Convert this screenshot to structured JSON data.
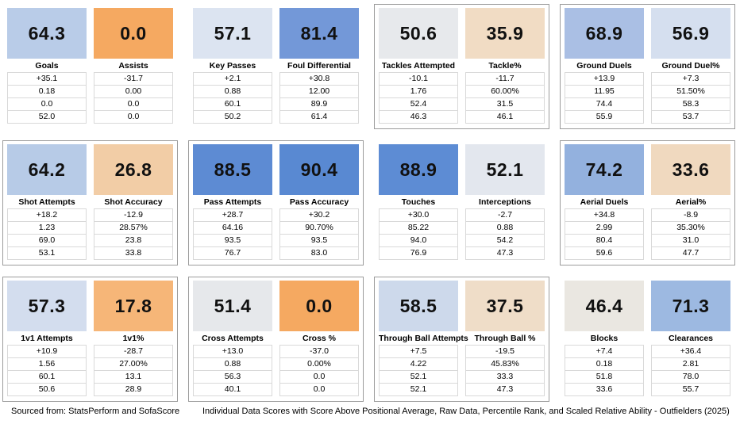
{
  "board": {
    "rows": [
      {
        "groups": [
          {
            "bordered": false,
            "cards": [
              {
                "score": "64.3",
                "score_color": "#b9cce8",
                "label": "Goals",
                "values": [
                  "+35.1",
                  "0.18",
                  "0.0",
                  "52.0"
                ]
              },
              {
                "score": "0.0",
                "score_color": "#f5a961",
                "label": "Assists",
                "values": [
                  "-31.7",
                  "0.00",
                  "0.0",
                  "0.0"
                ]
              }
            ]
          },
          {
            "bordered": false,
            "cards": [
              {
                "score": "57.1",
                "score_color": "#dce4f1",
                "label": "Key Passes",
                "values": [
                  "+2.1",
                  "0.88",
                  "60.1",
                  "50.2"
                ]
              },
              {
                "score": "81.4",
                "score_color": "#7398d8",
                "label": "Foul Differential",
                "values": [
                  "+30.8",
                  "12.00",
                  "89.9",
                  "61.4"
                ]
              }
            ]
          },
          {
            "bordered": true,
            "cards": [
              {
                "score": "50.6",
                "score_color": "#e7e9ec",
                "label": "Tackles Attempted",
                "values": [
                  "-10.1",
                  "1.76",
                  "52.4",
                  "46.3"
                ]
              },
              {
                "score": "35.9",
                "score_color": "#f1dcc4",
                "label": "Tackle%",
                "values": [
                  "-11.7",
                  "60.00%",
                  "31.5",
                  "46.1"
                ]
              }
            ]
          },
          {
            "bordered": true,
            "cards": [
              {
                "score": "68.9",
                "score_color": "#aabfe4",
                "label": "Ground Duels",
                "values": [
                  "+13.9",
                  "11.95",
                  "74.4",
                  "55.9"
                ]
              },
              {
                "score": "56.9",
                "score_color": "#d5dfef",
                "label": "Ground Duel%",
                "values": [
                  "+7.3",
                  "51.50%",
                  "58.3",
                  "53.7"
                ]
              }
            ]
          }
        ]
      },
      {
        "groups": [
          {
            "bordered": true,
            "cards": [
              {
                "score": "64.2",
                "score_color": "#b7cbe7",
                "label": "Shot Attempts",
                "values": [
                  "+18.2",
                  "1.23",
                  "69.0",
                  "53.1"
                ]
              },
              {
                "score": "26.8",
                "score_color": "#f2cda6",
                "label": "Shot Accuracy",
                "values": [
                  "-12.9",
                  "28.57%",
                  "23.8",
                  "33.8"
                ]
              }
            ]
          },
          {
            "bordered": true,
            "cards": [
              {
                "score": "88.5",
                "score_color": "#5d8bd3",
                "label": "Pass Attempts",
                "values": [
                  "+28.7",
                  "64.16",
                  "93.5",
                  "76.7"
                ]
              },
              {
                "score": "90.4",
                "score_color": "#5989d2",
                "label": "Pass Accuracy",
                "values": [
                  "+30.2",
                  "90.70%",
                  "93.5",
                  "83.0"
                ]
              }
            ]
          },
          {
            "bordered": false,
            "cards": [
              {
                "score": "88.9",
                "score_color": "#5d8cd4",
                "label": "Touches",
                "values": [
                  "+30.0",
                  "85.22",
                  "94.0",
                  "76.9"
                ]
              },
              {
                "score": "52.1",
                "score_color": "#e3e7ee",
                "label": "Interceptions",
                "values": [
                  "-2.7",
                  "0.88",
                  "54.2",
                  "47.3"
                ]
              }
            ]
          },
          {
            "bordered": true,
            "cards": [
              {
                "score": "74.2",
                "score_color": "#93b1de",
                "label": "Aerial Duels",
                "values": [
                  "+34.8",
                  "2.99",
                  "80.4",
                  "59.6"
                ]
              },
              {
                "score": "33.6",
                "score_color": "#f0d9bf",
                "label": "Aerial%",
                "values": [
                  "-8.9",
                  "35.30%",
                  "31.0",
                  "47.7"
                ]
              }
            ]
          }
        ]
      },
      {
        "groups": [
          {
            "bordered": true,
            "cards": [
              {
                "score": "57.3",
                "score_color": "#d3ddee",
                "label": "1v1 Attempts",
                "values": [
                  "+10.9",
                  "1.56",
                  "60.1",
                  "50.6"
                ]
              },
              {
                "score": "17.8",
                "score_color": "#f6b678",
                "label": "1v1%",
                "values": [
                  "-28.7",
                  "27.00%",
                  "13.1",
                  "28.9"
                ]
              }
            ]
          },
          {
            "bordered": true,
            "cards": [
              {
                "score": "51.4",
                "score_color": "#e6e8eb",
                "label": "Cross Attempts",
                "values": [
                  "+13.0",
                  "0.88",
                  "56.3",
                  "40.1"
                ]
              },
              {
                "score": "0.0",
                "score_color": "#f5a961",
                "label": "Cross %",
                "values": [
                  "-37.0",
                  "0.00%",
                  "0.0",
                  "0.0"
                ]
              }
            ]
          },
          {
            "bordered": true,
            "cards": [
              {
                "score": "58.5",
                "score_color": "#cdd9eb",
                "label": "Through Ball Attempts",
                "values": [
                  "+7.5",
                  "4.22",
                  "52.1",
                  "52.1"
                ]
              },
              {
                "score": "37.5",
                "score_color": "#efddc8",
                "label": "Through Ball %",
                "values": [
                  "-19.5",
                  "45.83%",
                  "33.3",
                  "47.3"
                ]
              }
            ]
          },
          {
            "bordered": false,
            "cards": [
              {
                "score": "46.4",
                "score_color": "#eae7e1",
                "label": "Blocks",
                "values": [
                  "+7.4",
                  "0.18",
                  "51.8",
                  "33.6"
                ]
              },
              {
                "score": "71.3",
                "score_color": "#9db9e1",
                "label": "Clearances",
                "values": [
                  "+36.4",
                  "2.81",
                  "78.0",
                  "55.7"
                ]
              }
            ]
          }
        ]
      }
    ]
  },
  "footer": {
    "source": "Sourced from: StatsPerform and SofaScore",
    "description": "Individual Data Scores with Score Above Positional Average, Raw Data, Percentile Rank, and Scaled Relative Ability - Outfielders (2025)"
  },
  "colors": {
    "scale_low": "#f5a961",
    "scale_mid": "#e8e8e8",
    "scale_high": "#5d8bd3",
    "group_border": "#9c9c9c",
    "cell_border": "#d9d9d9"
  },
  "chart_data": {
    "type": "table",
    "title": "Individual Data Scores with Score Above Positional Average, Raw Data, Percentile Rank, and Scaled Relative Ability - Outfielders (2025)",
    "source": "StatsPerform and SofaScore",
    "row_labels": [
      "Score",
      "Score Above Positional Average",
      "Raw Data",
      "Percentile Rank",
      "Scaled Relative Ability"
    ],
    "metrics": [
      {
        "name": "Goals",
        "score": 64.3,
        "above_avg": 35.1,
        "raw": "0.18",
        "percentile": 0.0,
        "scaled": 52.0
      },
      {
        "name": "Assists",
        "score": 0.0,
        "above_avg": -31.7,
        "raw": "0.00",
        "percentile": 0.0,
        "scaled": 0.0
      },
      {
        "name": "Key Passes",
        "score": 57.1,
        "above_avg": 2.1,
        "raw": "0.88",
        "percentile": 60.1,
        "scaled": 50.2
      },
      {
        "name": "Foul Differential",
        "score": 81.4,
        "above_avg": 30.8,
        "raw": "12.00",
        "percentile": 89.9,
        "scaled": 61.4
      },
      {
        "name": "Tackles Attempted",
        "score": 50.6,
        "above_avg": -10.1,
        "raw": "1.76",
        "percentile": 52.4,
        "scaled": 46.3
      },
      {
        "name": "Tackle%",
        "score": 35.9,
        "above_avg": -11.7,
        "raw": "60.00%",
        "percentile": 31.5,
        "scaled": 46.1
      },
      {
        "name": "Ground Duels",
        "score": 68.9,
        "above_avg": 13.9,
        "raw": "11.95",
        "percentile": 74.4,
        "scaled": 55.9
      },
      {
        "name": "Ground Duel%",
        "score": 56.9,
        "above_avg": 7.3,
        "raw": "51.50%",
        "percentile": 58.3,
        "scaled": 53.7
      },
      {
        "name": "Shot Attempts",
        "score": 64.2,
        "above_avg": 18.2,
        "raw": "1.23",
        "percentile": 69.0,
        "scaled": 53.1
      },
      {
        "name": "Shot Accuracy",
        "score": 26.8,
        "above_avg": -12.9,
        "raw": "28.57%",
        "percentile": 23.8,
        "scaled": 33.8
      },
      {
        "name": "Pass Attempts",
        "score": 88.5,
        "above_avg": 28.7,
        "raw": "64.16",
        "percentile": 93.5,
        "scaled": 76.7
      },
      {
        "name": "Pass Accuracy",
        "score": 90.4,
        "above_avg": 30.2,
        "raw": "90.70%",
        "percentile": 93.5,
        "scaled": 83.0
      },
      {
        "name": "Touches",
        "score": 88.9,
        "above_avg": 30.0,
        "raw": "85.22",
        "percentile": 94.0,
        "scaled": 76.9
      },
      {
        "name": "Interceptions",
        "score": 52.1,
        "above_avg": -2.7,
        "raw": "0.88",
        "percentile": 54.2,
        "scaled": 47.3
      },
      {
        "name": "Aerial Duels",
        "score": 74.2,
        "above_avg": 34.8,
        "raw": "2.99",
        "percentile": 80.4,
        "scaled": 59.6
      },
      {
        "name": "Aerial%",
        "score": 33.6,
        "above_avg": -8.9,
        "raw": "35.30%",
        "percentile": 31.0,
        "scaled": 47.7
      },
      {
        "name": "1v1 Attempts",
        "score": 57.3,
        "above_avg": 10.9,
        "raw": "1.56",
        "percentile": 60.1,
        "scaled": 50.6
      },
      {
        "name": "1v1%",
        "score": 17.8,
        "above_avg": -28.7,
        "raw": "27.00%",
        "percentile": 13.1,
        "scaled": 28.9
      },
      {
        "name": "Cross Attempts",
        "score": 51.4,
        "above_avg": 13.0,
        "raw": "0.88",
        "percentile": 56.3,
        "scaled": 40.1
      },
      {
        "name": "Cross %",
        "score": 0.0,
        "above_avg": -37.0,
        "raw": "0.00%",
        "percentile": 0.0,
        "scaled": 0.0
      },
      {
        "name": "Through Ball Attempts",
        "score": 58.5,
        "above_avg": 7.5,
        "raw": "4.22",
        "percentile": 52.1,
        "scaled": 52.1
      },
      {
        "name": "Through Ball %",
        "score": 37.5,
        "above_avg": -19.5,
        "raw": "45.83%",
        "percentile": 33.3,
        "scaled": 47.3
      },
      {
        "name": "Blocks",
        "score": 46.4,
        "above_avg": 7.4,
        "raw": "0.18",
        "percentile": 51.8,
        "scaled": 33.6
      },
      {
        "name": "Clearances",
        "score": 71.3,
        "above_avg": 36.4,
        "raw": "2.81",
        "percentile": 78.0,
        "scaled": 55.7
      }
    ]
  }
}
